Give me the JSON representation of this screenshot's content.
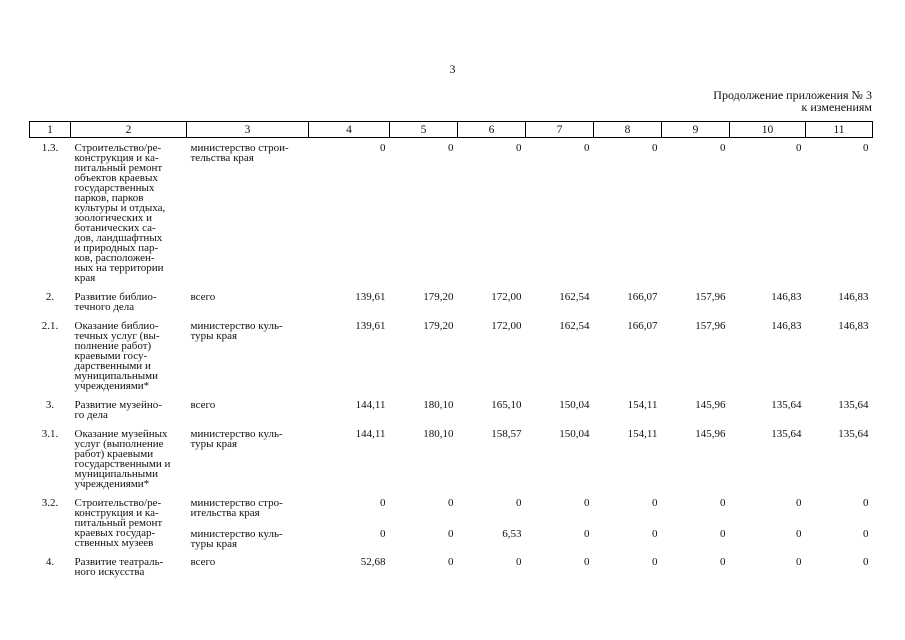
{
  "page_number": "3",
  "note": {
    "line1": "Продолжение приложения № 3",
    "line2": "к изменениям"
  },
  "table": {
    "headers": [
      "1",
      "2",
      "3",
      "4",
      "5",
      "6",
      "7",
      "8",
      "9",
      "10",
      "11"
    ],
    "rows": [
      {
        "idx": "1.3.",
        "name": "Строительство/ре-\nконструкция и ка-\nпитальный ремонт\nобъектов краевых\nгосударственных\nпарков, парков\nкультуры и отдыха,\nзоологических и\nботанических са-\nдов, ландшафтных\nи природных пар-\nков, расположен-\nных на территории\nкрая",
        "exec": "министерство строи-\nтельства края",
        "values": [
          "0",
          "0",
          "0",
          "0",
          "0",
          "0",
          "0",
          "0"
        ]
      },
      {
        "idx": "2.",
        "name": "Развитие библио-\nтечного дела",
        "exec": "всего",
        "values": [
          "139,61",
          "179,20",
          "172,00",
          "162,54",
          "166,07",
          "157,96",
          "146,83",
          "146,83"
        ]
      },
      {
        "idx": "2.1.",
        "name": "Оказание библио-\nтечных услуг (вы-\nполнение работ)\nкраевыми госу-\nдарственными и\nмуниципальными\nучреждениями*",
        "exec": "министерство куль-\nтуры края",
        "values": [
          "139,61",
          "179,20",
          "172,00",
          "162,54",
          "166,07",
          "157,96",
          "146,83",
          "146,83"
        ]
      },
      {
        "idx": "3.",
        "name": "Развитие музейно-\nго дела",
        "exec": "всего",
        "values": [
          "144,11",
          "180,10",
          "165,10",
          "150,04",
          "154,11",
          "145,96",
          "135,64",
          "135,64"
        ]
      },
      {
        "idx": "3.1.",
        "name": "Оказание музейных\nуслуг (выполнение\nработ) краевыми\nгосударственными и\nмуниципальными\nучреждениями*",
        "exec": "министерство куль-\nтуры края",
        "values": [
          "144,11",
          "180,10",
          "158,57",
          "150,04",
          "154,11",
          "145,96",
          "135,64",
          "135,64"
        ]
      },
      {
        "idx": "3.2.",
        "name": "Строительство/ре-\nконструкция и ка-\nпитальный ремонт\nкраевых государ-\nственных музеев",
        "exec": "министерство стро-\nительства края",
        "values": [
          "0",
          "0",
          "0",
          "0",
          "0",
          "0",
          "0",
          "0"
        ],
        "sub": {
          "exec": "министерство куль-\nтуры края",
          "values": [
            "0",
            "0",
            "6,53",
            "0",
            "0",
            "0",
            "0",
            "0"
          ]
        }
      },
      {
        "idx": "4.",
        "name": "Развитие театраль-\nного искусства",
        "exec": "всего",
        "values": [
          "52,68",
          "0",
          "0",
          "0",
          "0",
          "0",
          "0",
          "0"
        ]
      }
    ]
  }
}
